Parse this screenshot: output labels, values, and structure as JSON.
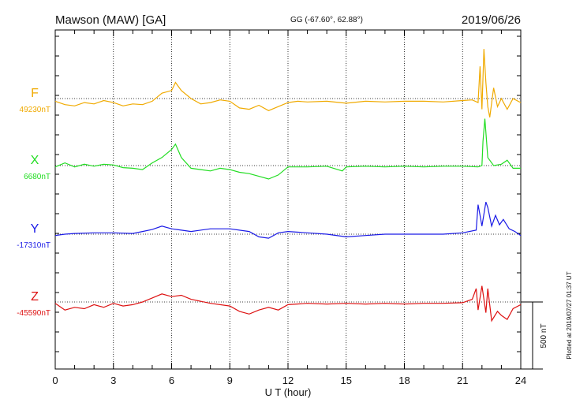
{
  "header": {
    "station": "Mawson (MAW)  [GA]",
    "coords": "GG (-67.60°,  62.88°)",
    "date": "2019/06/26"
  },
  "footer": {
    "plotted": "Plotted at 2019/07/27 01:37 UT"
  },
  "chart_data": {
    "type": "line",
    "xlabel": "U T (hour)",
    "xlim": [
      0,
      24
    ],
    "xticks": [
      "0",
      "3",
      "6",
      "9",
      "12",
      "15",
      "18",
      "21",
      "24"
    ],
    "grid": true,
    "scale_bar": {
      "label": "500 nT",
      "value_nT": 500
    },
    "series": [
      {
        "name": "F",
        "baseline_label": "49230nT",
        "baseline": 49230,
        "color": "#f0aa00",
        "points": [
          [
            0,
            -20
          ],
          [
            0.5,
            -45
          ],
          [
            1,
            -55
          ],
          [
            1.5,
            -30
          ],
          [
            2,
            -40
          ],
          [
            2.5,
            -15
          ],
          [
            3,
            -30
          ],
          [
            3.5,
            -55
          ],
          [
            4,
            -40
          ],
          [
            4.5,
            -45
          ],
          [
            5,
            -20
          ],
          [
            5.5,
            40
          ],
          [
            6,
            60
          ],
          [
            6.2,
            120
          ],
          [
            6.5,
            60
          ],
          [
            7,
            0
          ],
          [
            7.5,
            -40
          ],
          [
            8,
            -30
          ],
          [
            8.5,
            -10
          ],
          [
            9,
            -20
          ],
          [
            9.5,
            -70
          ],
          [
            10,
            -80
          ],
          [
            10.5,
            -50
          ],
          [
            11,
            -90
          ],
          [
            11.5,
            -60
          ],
          [
            12,
            -30
          ],
          [
            12.5,
            -20
          ],
          [
            13,
            -25
          ],
          [
            14,
            -20
          ],
          [
            15,
            -35
          ],
          [
            16,
            -20
          ],
          [
            17,
            -25
          ],
          [
            18,
            -20
          ],
          [
            19,
            -20
          ],
          [
            20,
            -25
          ],
          [
            21,
            -15
          ],
          [
            21.5,
            -10
          ],
          [
            21.8,
            -30
          ],
          [
            21.9,
            240
          ],
          [
            22.0,
            -80
          ],
          [
            22.1,
            370
          ],
          [
            22.2,
            120
          ],
          [
            22.3,
            -60
          ],
          [
            22.4,
            -140
          ],
          [
            22.6,
            80
          ],
          [
            22.8,
            -60
          ],
          [
            23,
            0
          ],
          [
            23.3,
            -80
          ],
          [
            23.6,
            0
          ],
          [
            24,
            -30
          ]
        ]
      },
      {
        "name": "X",
        "baseline_label": "6680nT",
        "baseline": 6680,
        "color": "#22dd22",
        "points": [
          [
            0,
            -10
          ],
          [
            0.5,
            20
          ],
          [
            1,
            -10
          ],
          [
            1.5,
            10
          ],
          [
            2,
            -5
          ],
          [
            2.5,
            10
          ],
          [
            3,
            5
          ],
          [
            3.5,
            -15
          ],
          [
            4,
            -20
          ],
          [
            4.5,
            -30
          ],
          [
            5,
            20
          ],
          [
            5.5,
            60
          ],
          [
            6,
            120
          ],
          [
            6.2,
            160
          ],
          [
            6.5,
            60
          ],
          [
            7,
            -20
          ],
          [
            7.5,
            -30
          ],
          [
            8,
            -40
          ],
          [
            8.5,
            -20
          ],
          [
            9,
            -30
          ],
          [
            9.5,
            -50
          ],
          [
            10,
            -60
          ],
          [
            10.5,
            -80
          ],
          [
            11,
            -100
          ],
          [
            11.5,
            -70
          ],
          [
            12,
            -10
          ],
          [
            13,
            -10
          ],
          [
            14,
            -5
          ],
          [
            14.8,
            -40
          ],
          [
            15,
            -10
          ],
          [
            16,
            -5
          ],
          [
            17,
            -10
          ],
          [
            18,
            -5
          ],
          [
            19,
            -10
          ],
          [
            20,
            -5
          ],
          [
            21,
            -5
          ],
          [
            21.8,
            -10
          ],
          [
            22.0,
            0
          ],
          [
            22.05,
            180
          ],
          [
            22.15,
            350
          ],
          [
            22.3,
            60
          ],
          [
            22.6,
            0
          ],
          [
            23,
            10
          ],
          [
            23.3,
            40
          ],
          [
            23.6,
            -20
          ],
          [
            24,
            -20
          ]
        ]
      },
      {
        "name": "Y",
        "baseline_label": "-17310nT",
        "baseline": -17310,
        "color": "#1a1ae6",
        "points": [
          [
            0,
            -10
          ],
          [
            0.5,
            0
          ],
          [
            1,
            5
          ],
          [
            2,
            10
          ],
          [
            3,
            10
          ],
          [
            4,
            5
          ],
          [
            4.5,
            20
          ],
          [
            5,
            35
          ],
          [
            5.5,
            60
          ],
          [
            6,
            40
          ],
          [
            6.5,
            30
          ],
          [
            7,
            20
          ],
          [
            8,
            40
          ],
          [
            9,
            40
          ],
          [
            10,
            20
          ],
          [
            10.5,
            -20
          ],
          [
            11,
            -30
          ],
          [
            11.5,
            10
          ],
          [
            12,
            20
          ],
          [
            13,
            10
          ],
          [
            14,
            0
          ],
          [
            15,
            -20
          ],
          [
            16,
            -10
          ],
          [
            17,
            0
          ],
          [
            18,
            0
          ],
          [
            19,
            0
          ],
          [
            20,
            0
          ],
          [
            21,
            10
          ],
          [
            21.7,
            30
          ],
          [
            21.8,
            220
          ],
          [
            21.9,
            140
          ],
          [
            22,
            60
          ],
          [
            22.2,
            240
          ],
          [
            22.3,
            200
          ],
          [
            22.5,
            60
          ],
          [
            22.7,
            140
          ],
          [
            22.9,
            70
          ],
          [
            23.1,
            110
          ],
          [
            23.4,
            40
          ],
          [
            23.7,
            20
          ],
          [
            24,
            -10
          ]
        ]
      },
      {
        "name": "Z",
        "baseline_label": "-45590nT",
        "baseline": -45590,
        "color": "#dd1111",
        "points": [
          [
            0,
            -10
          ],
          [
            0.5,
            -60
          ],
          [
            1,
            -40
          ],
          [
            1.5,
            -50
          ],
          [
            2,
            -20
          ],
          [
            2.5,
            -40
          ],
          [
            3,
            -10
          ],
          [
            3.5,
            -30
          ],
          [
            4,
            -20
          ],
          [
            4.5,
            0
          ],
          [
            5,
            30
          ],
          [
            5.5,
            60
          ],
          [
            6,
            40
          ],
          [
            6.5,
            50
          ],
          [
            7,
            20
          ],
          [
            8,
            -10
          ],
          [
            9,
            -30
          ],
          [
            9.5,
            -70
          ],
          [
            10,
            -90
          ],
          [
            10.5,
            -60
          ],
          [
            11,
            -40
          ],
          [
            11.5,
            -60
          ],
          [
            12,
            -20
          ],
          [
            13,
            -10
          ],
          [
            14,
            -15
          ],
          [
            15,
            -10
          ],
          [
            16,
            -15
          ],
          [
            17,
            -10
          ],
          [
            18,
            -15
          ],
          [
            19,
            -10
          ],
          [
            20,
            -10
          ],
          [
            21,
            -5
          ],
          [
            21.5,
            20
          ],
          [
            21.7,
            100
          ],
          [
            21.8,
            -60
          ],
          [
            22.0,
            120
          ],
          [
            22.2,
            -80
          ],
          [
            22.3,
            100
          ],
          [
            22.5,
            -140
          ],
          [
            22.8,
            -70
          ],
          [
            23,
            -100
          ],
          [
            23.3,
            -130
          ],
          [
            23.6,
            -50
          ],
          [
            24,
            -20
          ]
        ]
      }
    ]
  }
}
